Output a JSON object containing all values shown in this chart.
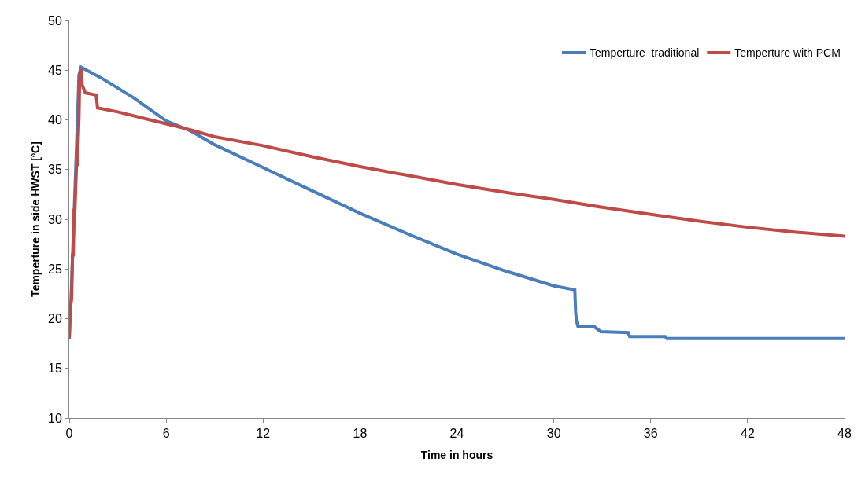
{
  "chart_data": {
    "type": "line",
    "xlabel": "Time in hours",
    "ylabel": "Temperture in side HWST [ºC]",
    "xlim": [
      0,
      48
    ],
    "xticks": [
      0,
      6,
      12,
      18,
      24,
      30,
      36,
      42,
      48
    ],
    "ylim": [
      10,
      50
    ],
    "yticks": [
      10,
      15,
      20,
      25,
      30,
      35,
      40,
      45,
      50
    ],
    "grid": false,
    "legend": "top right",
    "marker": "none",
    "line_style": "solid",
    "series": [
      {
        "name": "Temperture  traditional",
        "color": "#4a7ebb",
        "x": [
          0,
          0.1,
          0.2,
          0.4,
          0.5,
          0.6,
          0.73,
          2,
          4,
          6,
          7.5,
          9,
          12,
          15,
          18,
          21,
          24,
          27,
          30,
          31.3,
          31.35,
          31.4,
          31.5,
          32.5,
          32.9,
          34.6,
          34.7,
          36.9,
          37,
          48
        ],
        "values": [
          18,
          21.5,
          26,
          35,
          39.5,
          44.5,
          45.3,
          44.2,
          42.2,
          39.9,
          38.9,
          37.5,
          35.2,
          32.9,
          30.6,
          28.5,
          26.5,
          24.8,
          23.3,
          22.9,
          20.7,
          19.8,
          19.2,
          19.2,
          18.7,
          18.6,
          18.2,
          18.2,
          18,
          18
        ]
      },
      {
        "name": "Temperture with PCM",
        "color": "#be4b48",
        "x": [
          0,
          0.05,
          0.15,
          0.2,
          0.25,
          0.3,
          0.35,
          0.45,
          0.5,
          0.6,
          0.65,
          0.73,
          0.8,
          1,
          1.66,
          1.75,
          3,
          5,
          6,
          7.5,
          9,
          12,
          15,
          18,
          21,
          24,
          27,
          30,
          33,
          36,
          39,
          42,
          45,
          48
        ],
        "values": [
          18,
          21,
          22,
          26.4,
          26.4,
          30.9,
          30.9,
          35.5,
          35.5,
          40.2,
          44.6,
          45.1,
          43.5,
          42.7,
          42.5,
          41.2,
          40.8,
          40,
          39.6,
          39,
          38.3,
          37.4,
          36.3,
          35.3,
          34.4,
          33.5,
          32.7,
          32,
          31.2,
          30.5,
          29.8,
          29.2,
          28.7,
          28.3
        ]
      }
    ]
  }
}
